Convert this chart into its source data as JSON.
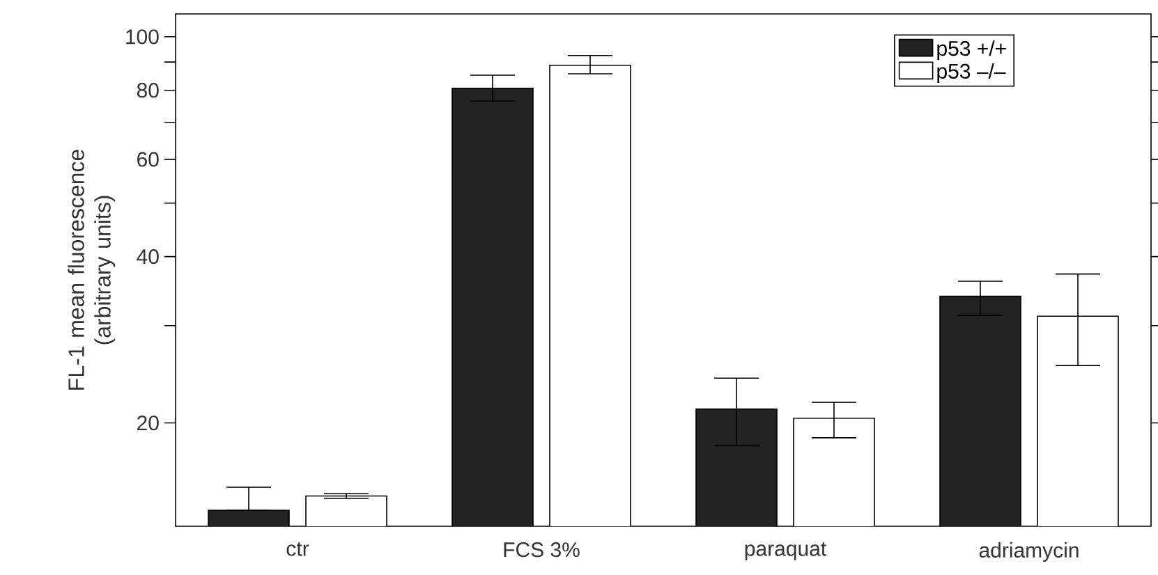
{
  "chart_data": {
    "type": "bar",
    "ylabel": "FL-1 mean fluorescence (arbitrary units)",
    "categories": [
      "ctr",
      "FCS 3%",
      "paraquat",
      "adriamycin"
    ],
    "series": [
      {
        "name": "p53 +/+",
        "color": "#222222",
        "values": [
          13.9,
          80.7,
          21.2,
          33.9
        ],
        "errors": [
          [
            13.9,
            15.3
          ],
          [
            76.5,
            85.2
          ],
          [
            18.2,
            24.1
          ],
          [
            31.3,
            36.1
          ]
        ]
      },
      {
        "name": "p53 –/–",
        "color": "#ffffff",
        "values": [
          14.75,
          88.8,
          20.4,
          31.2
        ],
        "errors": [
          [
            14.6,
            14.9
          ],
          [
            85.7,
            92.5
          ],
          [
            18.8,
            21.8
          ],
          [
            25.4,
            37.2
          ]
        ]
      }
    ],
    "log": "y",
    "ylim": [
      13,
      110
    ],
    "yticks": [
      20,
      {
        "value": 30,
        "label": null
      },
      40,
      {
        "value": 50,
        "label": null
      },
      60,
      {
        "value": 70,
        "label": null
      },
      80,
      {
        "value": 90,
        "label": null
      },
      100
    ],
    "legend": "top right",
    "grid": false
  }
}
